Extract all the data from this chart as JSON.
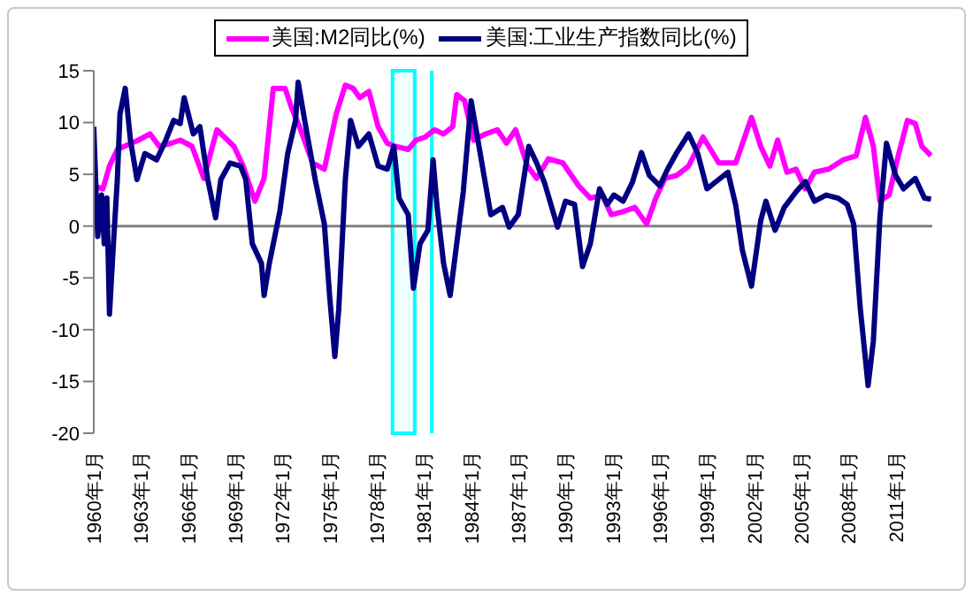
{
  "chart_data": {
    "type": "line",
    "legend": "top",
    "marker": "none",
    "line_style": "solid",
    "grid": false,
    "xlim": [
      "1960-01",
      "2013-05"
    ],
    "ylim": [
      -20,
      15
    ],
    "yticks": [
      -20,
      -15,
      -10,
      -5,
      0,
      5,
      10,
      15
    ],
    "xticks": [
      {
        "value": "1960-01",
        "label": "1960年1月"
      },
      {
        "value": "1963-01",
        "label": "1963年1月"
      },
      {
        "value": "1966-01",
        "label": "1966年1月"
      },
      {
        "value": "1969-01",
        "label": "1969年1月"
      },
      {
        "value": "1972-01",
        "label": "1972年1月"
      },
      {
        "value": "1975-01",
        "label": "1975年1月"
      },
      {
        "value": "1978-01",
        "label": "1978年1月"
      },
      {
        "value": "1981-01",
        "label": "1981年1月"
      },
      {
        "value": "1984-01",
        "label": "1984年1月"
      },
      {
        "value": "1987-01",
        "label": "1987年1月"
      },
      {
        "value": "1990-01",
        "label": "1990年1月"
      },
      {
        "value": "1993-01",
        "label": "1993年1月"
      },
      {
        "value": "1996-01",
        "label": "1996年1月"
      },
      {
        "value": "1999-01",
        "label": "1999年1月"
      },
      {
        "value": "2002-01",
        "label": "2002年1月"
      },
      {
        "value": "2005-01",
        "label": "2005年1月"
      },
      {
        "value": "2008-01",
        "label": "2008年1月"
      },
      {
        "value": "2011-01",
        "label": "2011年1月"
      }
    ],
    "ref_lines": [
      {
        "axis": "y",
        "value": 0,
        "color": "#808080"
      },
      {
        "axis": "x",
        "value": "1981-07",
        "color": "#00ffff"
      }
    ],
    "bands": [
      {
        "axis": "x",
        "from": "1979-01",
        "to": "1980-06",
        "color": "#00ffff"
      }
    ],
    "series": [
      {
        "name": "美国:M2同比(%)",
        "color": "#ff00ff",
        "x": [
          "1960-01",
          "1960-08",
          "1961-01",
          "1961-07",
          "1962-11",
          "1963-08",
          "1964-03",
          "1964-12",
          "1965-07",
          "1966-04",
          "1967-01",
          "1967-11",
          "1968-12",
          "1969-07",
          "1970-04",
          "1970-11",
          "1971-06",
          "1972-03",
          "1972-08",
          "1973-02",
          "1973-12",
          "1974-09",
          "1975-06",
          "1976-01",
          "1976-07",
          "1976-12",
          "1977-07",
          "1978-02",
          "1978-09",
          "1979-03",
          "1980-01",
          "1980-07",
          "1981-02",
          "1981-09",
          "1982-04",
          "1982-11",
          "1983-02",
          "1983-08",
          "1984-03",
          "1984-12",
          "1985-09",
          "1986-04",
          "1986-11",
          "1987-08",
          "1988-03",
          "1988-12",
          "1989-11",
          "1990-11",
          "1991-08",
          "1992-05",
          "1992-12",
          "1993-09",
          "1994-06",
          "1995-03",
          "1995-10",
          "1996-05",
          "1997-02",
          "1997-11",
          "1998-10",
          "1999-10",
          "2000-11",
          "2001-11",
          "2002-06",
          "2003-01",
          "2003-07",
          "2004-02",
          "2004-09",
          "2005-04",
          "2005-11",
          "2006-10",
          "2007-09",
          "2008-07",
          "2009-02",
          "2009-08",
          "2010-01",
          "2010-08",
          "2011-03",
          "2011-10",
          "2012-04",
          "2012-09",
          "2013-04"
        ],
        "values": [
          3.9,
          3.6,
          5.8,
          7.4,
          8.3,
          8.9,
          7.7,
          8,
          8.3,
          7.7,
          4.6,
          9.3,
          7.7,
          5.8,
          2.4,
          4.6,
          13.3,
          13.3,
          11.4,
          9.6,
          6.1,
          5.5,
          10.8,
          13.6,
          13.3,
          12.4,
          13,
          9.6,
          8,
          7.7,
          7.4,
          8.3,
          8.6,
          9.3,
          8.9,
          9.6,
          12.7,
          12.1,
          8.3,
          8.9,
          9.3,
          8,
          9.3,
          5.8,
          4.6,
          6.5,
          6.1,
          3.9,
          2.7,
          3,
          1.1,
          1.4,
          1.8,
          0.2,
          2.7,
          4.6,
          4.9,
          5.8,
          8.6,
          6.1,
          6.1,
          10.5,
          7.7,
          5.8,
          8.3,
          5.2,
          5.5,
          3.6,
          5.2,
          5.5,
          6.4,
          6.8,
          10.5,
          7.7,
          2.4,
          3,
          6.8,
          10.2,
          9.9,
          7.7,
          6.8
        ]
      },
      {
        "name": "美国:工业生产指数同比(%)",
        "color": "#000080",
        "x": [
          "1960-01",
          "1960-04",
          "1960-07",
          "1960-09",
          "1960-11",
          "1961-01",
          "1961-04",
          "1961-07",
          "1961-09",
          "1962-01",
          "1962-05",
          "1962-10",
          "1963-04",
          "1964-01",
          "1964-08",
          "1965-02",
          "1965-07",
          "1965-10",
          "1966-05",
          "1966-10",
          "1967-04",
          "1967-10",
          "1968-02",
          "1968-09",
          "1969-05",
          "1969-09",
          "1970-02",
          "1970-09",
          "1970-11",
          "1971-03",
          "1971-11",
          "1972-05",
          "1972-11",
          "1973-01",
          "1973-06",
          "1974-02",
          "1974-09",
          "1975-01",
          "1975-05",
          "1975-08",
          "1976-01",
          "1976-05",
          "1976-11",
          "1977-07",
          "1978-02",
          "1978-09",
          "1979-02",
          "1979-06",
          "1980-01",
          "1980-05",
          "1980-10",
          "1981-04",
          "1981-08",
          "1981-11",
          "1982-04",
          "1982-09",
          "1983-02",
          "1983-07",
          "1984-01",
          "1984-07",
          "1985-04",
          "1986-01",
          "1986-06",
          "1987-01",
          "1987-09",
          "1988-03",
          "1988-09",
          "1989-07",
          "1990-01",
          "1990-08",
          "1991-02",
          "1991-08",
          "1992-03",
          "1992-09",
          "1993-02",
          "1993-09",
          "1994-04",
          "1994-11",
          "1995-05",
          "1996-01",
          "1996-07",
          "1997-02",
          "1997-11",
          "1998-06",
          "1999-01",
          "1999-07",
          "2000-05",
          "2000-11",
          "2001-04",
          "2001-11",
          "2002-06",
          "2002-10",
          "2003-05",
          "2003-12",
          "2004-09",
          "2005-04",
          "2005-11",
          "2006-08",
          "2007-05",
          "2007-12",
          "2008-05",
          "2008-10",
          "2009-04",
          "2009-08",
          "2010-01",
          "2010-06",
          "2011-01",
          "2011-07",
          "2012-04",
          "2012-11",
          "2013-04"
        ],
        "values": [
          9.6,
          -1,
          3,
          -1.7,
          2.7,
          -8.5,
          -1.7,
          4.5,
          10.8,
          13.3,
          8.3,
          4.5,
          7,
          6.4,
          8.3,
          10.2,
          9.9,
          12.4,
          8.9,
          9.6,
          4.5,
          0.8,
          4.5,
          6.1,
          5.8,
          4.5,
          -1.7,
          -3.6,
          -6.7,
          -3.6,
          1.4,
          7,
          10.2,
          13.9,
          10.2,
          4.5,
          0.2,
          -6.7,
          -12.6,
          -8,
          4.5,
          10.2,
          7.7,
          8.9,
          5.8,
          5.5,
          7.7,
          2.7,
          1.1,
          -6,
          -1.7,
          -0.4,
          6.4,
          1.9,
          -3.6,
          -6.7,
          -1.7,
          3.3,
          12.1,
          7.7,
          1.1,
          1.8,
          -0.1,
          1.1,
          7.7,
          6.1,
          4.2,
          -0.1,
          2.4,
          2.1,
          -3.9,
          -1.7,
          3.6,
          2.1,
          3,
          2.4,
          4.2,
          7.1,
          4.9,
          3.9,
          5.5,
          7.1,
          8.9,
          7,
          3.6,
          4.2,
          5.2,
          2,
          -2.3,
          -5.8,
          0.5,
          2.4,
          -0.4,
          1.8,
          3.3,
          4.3,
          2.4,
          3,
          2.7,
          2.1,
          0.2,
          -7.9,
          -15.4,
          -11.1,
          0.8,
          8,
          4.9,
          3.6,
          4.6,
          2.7,
          2.6
        ]
      }
    ]
  }
}
